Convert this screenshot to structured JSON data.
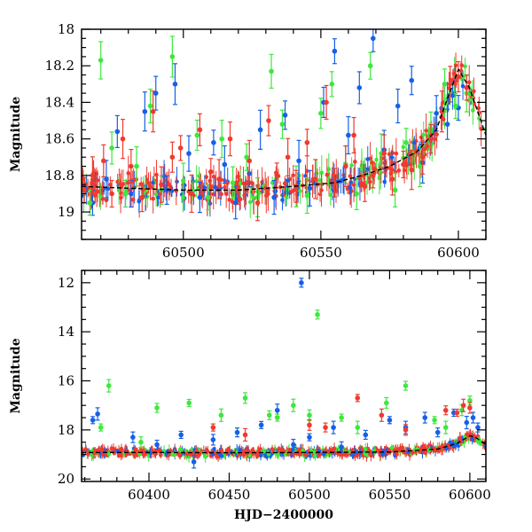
{
  "chart_data": [
    {
      "type": "scatter",
      "title": "",
      "xlabel": "",
      "ylabel": "Magnitude",
      "xlim": [
        60463,
        60610
      ],
      "ylim": [
        19.15,
        18.0
      ],
      "y_inverted": true,
      "x_ticks": [
        60500,
        60550,
        60600
      ],
      "y_ticks": [
        18,
        18.2,
        18.4,
        18.6,
        18.8,
        19
      ],
      "y_tick_labels": [
        "18",
        "18.2",
        "18.4",
        "18.6",
        "18.8",
        "19"
      ],
      "grid": false,
      "legend": "none",
      "error_bars": true,
      "series": [
        {
          "color": "#1560e8",
          "x": [
            60467,
            60472,
            60476,
            60481,
            60486,
            60490,
            60494,
            60497,
            60502,
            60506,
            60511,
            60515,
            60519,
            60524,
            60528,
            60533,
            60537,
            60542,
            60546,
            60551,
            60555,
            60560,
            60564,
            60569,
            60573,
            60578,
            60583,
            60587,
            60592,
            60596,
            60600
          ],
          "y": [
            18.95,
            18.82,
            18.56,
            18.9,
            18.45,
            18.35,
            18.88,
            18.3,
            18.68,
            18.92,
            18.62,
            18.74,
            18.95,
            18.79,
            18.55,
            18.92,
            18.47,
            18.72,
            18.87,
            18.4,
            18.12,
            18.58,
            18.32,
            18.05,
            18.66,
            18.42,
            18.28,
            18.73,
            18.46,
            18.52,
            18.43
          ]
        },
        {
          "color": "#3ce83c",
          "x": [
            60466,
            60470,
            60474,
            60479,
            60483,
            60488,
            60492,
            60496,
            60500,
            60505,
            60509,
            60514,
            60518,
            60523,
            60527,
            60532,
            60536,
            60541,
            60545,
            60550,
            60554,
            60559,
            60563,
            60568,
            60572,
            60577,
            60581,
            60586,
            60590,
            60595,
            60599,
            60603
          ],
          "y": [
            18.95,
            18.17,
            18.65,
            18.9,
            18.75,
            18.42,
            18.88,
            18.15,
            18.83,
            18.58,
            18.92,
            18.6,
            18.84,
            18.7,
            18.92,
            18.23,
            18.52,
            18.86,
            18.91,
            18.46,
            18.3,
            18.74,
            18.9,
            18.2,
            18.68,
            18.88,
            18.62,
            18.75,
            18.55,
            18.3,
            18.42,
            18.35
          ]
        },
        {
          "color": "#f03a2e",
          "x": [
            60464,
            60467,
            60471,
            60474,
            60478,
            60481,
            60485,
            60489,
            60492,
            60496,
            60499,
            60503,
            60506,
            60510,
            60513,
            60517,
            60520,
            60524,
            60527,
            60531,
            60534,
            60538,
            60541,
            60545,
            60548,
            60552,
            60555,
            60559,
            60562,
            60566,
            60569,
            60573,
            60576,
            60580,
            60583,
            60587,
            60590,
            60594,
            60597,
            60600,
            60603
          ],
          "y": [
            18.88,
            18.8,
            18.72,
            18.9,
            18.6,
            18.75,
            18.92,
            18.45,
            18.85,
            18.7,
            18.65,
            18.9,
            18.55,
            18.78,
            18.82,
            18.6,
            18.88,
            18.72,
            18.95,
            18.5,
            18.8,
            18.7,
            18.86,
            18.62,
            18.82,
            18.4,
            18.84,
            18.75,
            18.58,
            18.86,
            18.8,
            18.68,
            18.82,
            18.74,
            18.77,
            18.7,
            18.6,
            18.45,
            18.3,
            18.26,
            18.32
          ]
        }
      ],
      "model_curve": {
        "x": [
          60463,
          60480,
          60500,
          60520,
          60540,
          60555,
          60565,
          60575,
          60585,
          60592,
          60596,
          60600,
          60604,
          60610
        ],
        "y": [
          18.86,
          18.87,
          18.88,
          18.88,
          18.86,
          18.84,
          18.8,
          18.75,
          18.67,
          18.55,
          18.38,
          18.22,
          18.32,
          18.58
        ]
      }
    },
    {
      "type": "scatter",
      "title": "",
      "xlabel": "HJD−2400000",
      "ylabel": "Magnitude",
      "xlim": [
        60358,
        60610
      ],
      "ylim": [
        20.1,
        11.5
      ],
      "y_inverted": true,
      "x_ticks": [
        60400,
        60450,
        60500,
        60550,
        60600
      ],
      "y_ticks": [
        12,
        14,
        16,
        18,
        20
      ],
      "y_tick_labels": [
        "12",
        "14",
        "16",
        "18",
        "20"
      ],
      "grid": false,
      "legend": "none",
      "error_bars": true,
      "series": [
        {
          "color": "#1560e8",
          "x": [
            60365,
            60368,
            60390,
            60405,
            60420,
            60428,
            60440,
            60455,
            60470,
            60480,
            60490,
            60495,
            60500,
            60515,
            60520,
            60535,
            60550,
            60560,
            60572,
            60580,
            60590,
            60598,
            60602,
            60605
          ],
          "y": [
            17.6,
            17.35,
            18.3,
            18.6,
            18.2,
            19.3,
            18.4,
            18.1,
            17.8,
            17.2,
            18.6,
            12.0,
            18.3,
            17.9,
            18.7,
            18.2,
            17.6,
            17.9,
            17.5,
            18.1,
            17.3,
            17.7,
            17.5,
            17.9
          ]
        },
        {
          "color": "#3ce83c",
          "x": [
            60370,
            60375,
            60395,
            60405,
            60425,
            60445,
            60460,
            60475,
            60480,
            60490,
            60500,
            60505,
            60520,
            60530,
            60548,
            60560,
            60578,
            60585,
            60595,
            60600
          ],
          "y": [
            17.9,
            16.2,
            18.5,
            17.1,
            16.9,
            17.4,
            16.7,
            17.4,
            17.5,
            17.0,
            17.4,
            13.3,
            17.5,
            17.9,
            16.9,
            16.2,
            17.6,
            17.9,
            17.2,
            16.8
          ]
        },
        {
          "color": "#f03a2e",
          "x": [
            60440,
            60460,
            60500,
            60510,
            60530,
            60545,
            60560,
            60585,
            60592,
            60596,
            60600
          ],
          "y": [
            17.9,
            18.2,
            17.8,
            17.9,
            16.7,
            17.4,
            18.0,
            17.2,
            17.3,
            17.0,
            17.1
          ]
        }
      ],
      "model_curve": {
        "x": [
          60358,
          60400,
          60450,
          60500,
          60550,
          60580,
          60592,
          60600,
          60604,
          60610
        ],
        "y": [
          18.92,
          18.92,
          18.93,
          18.92,
          18.9,
          18.78,
          18.55,
          18.24,
          18.32,
          18.6
        ]
      }
    }
  ]
}
